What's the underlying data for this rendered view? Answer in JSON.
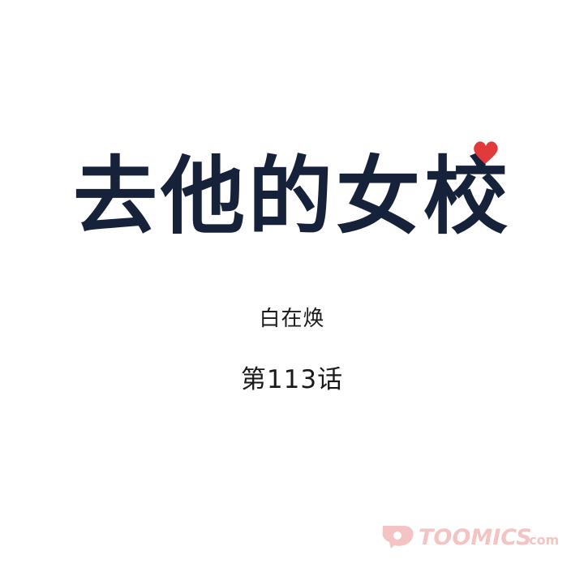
{
  "title": "去他的女校",
  "author": "白在焕",
  "chapter": "第113话",
  "watermark": {
    "brand": "TOOMICS",
    "suffix": ".com"
  },
  "colors": {
    "title": "#16213a",
    "heart": "#e23a3a",
    "text": "#1a1a1a",
    "watermark": "#f3b9b9"
  },
  "icons": {
    "heart": "heart-icon",
    "watermark_logo": "toomics-logo-icon"
  }
}
